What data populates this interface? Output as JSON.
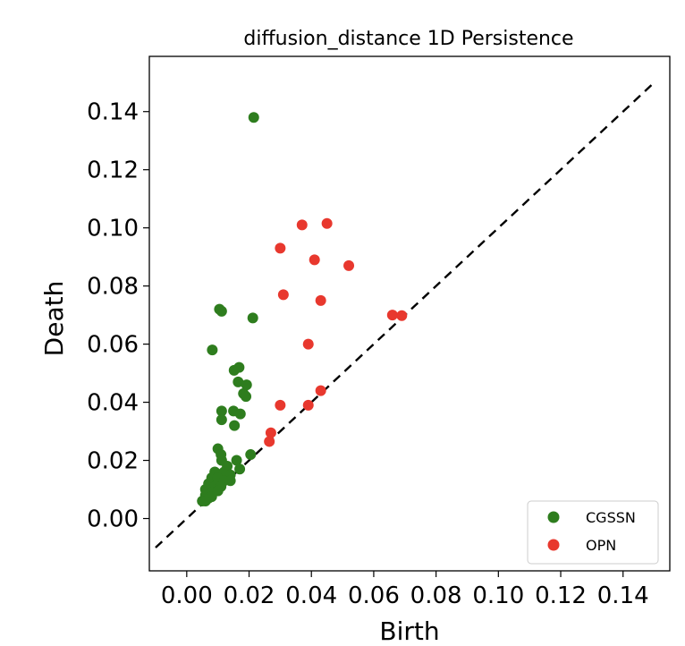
{
  "chart_data": {
    "type": "scatter",
    "title": "diffusion_distance 1D Persistence",
    "xlabel": "Birth",
    "ylabel": "Death",
    "xlim": [
      -0.012,
      0.155
    ],
    "ylim": [
      -0.018,
      0.159
    ],
    "x_ticks": [
      0.0,
      0.02,
      0.04,
      0.06,
      0.08,
      0.1,
      0.12,
      0.14
    ],
    "x_tick_labels": [
      "0.00",
      "0.02",
      "0.04",
      "0.06",
      "0.08",
      "0.10",
      "0.12",
      "0.14"
    ],
    "y_ticks": [
      0.0,
      0.02,
      0.04,
      0.06,
      0.08,
      0.1,
      0.12,
      0.14
    ],
    "y_tick_labels": [
      "0.00",
      "0.02",
      "0.04",
      "0.06",
      "0.08",
      "0.10",
      "0.12",
      "0.14"
    ],
    "diagonal": {
      "from": [
        -0.01,
        -0.01
      ],
      "to": [
        0.15,
        0.15
      ],
      "style": "dashed",
      "color": "#000000"
    },
    "legend_position": "lower-right",
    "series": [
      {
        "name": "CGSSN",
        "color": "#2e7d1e",
        "points": [
          [
            0.0215,
            0.138
          ],
          [
            0.0105,
            0.072
          ],
          [
            0.0112,
            0.0713
          ],
          [
            0.0212,
            0.069
          ],
          [
            0.0082,
            0.058
          ],
          [
            0.0152,
            0.051
          ],
          [
            0.0168,
            0.052
          ],
          [
            0.0165,
            0.047
          ],
          [
            0.0192,
            0.046
          ],
          [
            0.0182,
            0.043
          ],
          [
            0.019,
            0.042
          ],
          [
            0.0112,
            0.037
          ],
          [
            0.015,
            0.037
          ],
          [
            0.0172,
            0.036
          ],
          [
            0.0112,
            0.034
          ],
          [
            0.0153,
            0.032
          ],
          [
            0.01,
            0.024
          ],
          [
            0.011,
            0.022
          ],
          [
            0.0205,
            0.022
          ],
          [
            0.0112,
            0.02
          ],
          [
            0.016,
            0.02
          ],
          [
            0.013,
            0.018
          ],
          [
            0.017,
            0.017
          ],
          [
            0.009,
            0.016
          ],
          [
            0.012,
            0.016
          ],
          [
            0.014,
            0.015
          ],
          [
            0.008,
            0.014
          ],
          [
            0.01,
            0.014
          ],
          [
            0.012,
            0.013
          ],
          [
            0.014,
            0.013
          ],
          [
            0.007,
            0.012
          ],
          [
            0.009,
            0.011
          ],
          [
            0.011,
            0.011
          ],
          [
            0.006,
            0.01
          ],
          [
            0.008,
            0.009
          ],
          [
            0.01,
            0.0095
          ],
          [
            0.006,
            0.008
          ],
          [
            0.007,
            0.007
          ],
          [
            0.008,
            0.0075
          ],
          [
            0.005,
            0.006
          ],
          [
            0.006,
            0.006
          ]
        ]
      },
      {
        "name": "OPN",
        "color": "#e8382e",
        "points": [
          [
            0.037,
            0.101
          ],
          [
            0.045,
            0.1015
          ],
          [
            0.03,
            0.093
          ],
          [
            0.041,
            0.089
          ],
          [
            0.052,
            0.087
          ],
          [
            0.031,
            0.077
          ],
          [
            0.043,
            0.075
          ],
          [
            0.066,
            0.07
          ],
          [
            0.069,
            0.0698
          ],
          [
            0.039,
            0.06
          ],
          [
            0.043,
            0.044
          ],
          [
            0.039,
            0.039
          ],
          [
            0.03,
            0.039
          ],
          [
            0.027,
            0.0295
          ],
          [
            0.0265,
            0.0265
          ]
        ]
      }
    ]
  }
}
